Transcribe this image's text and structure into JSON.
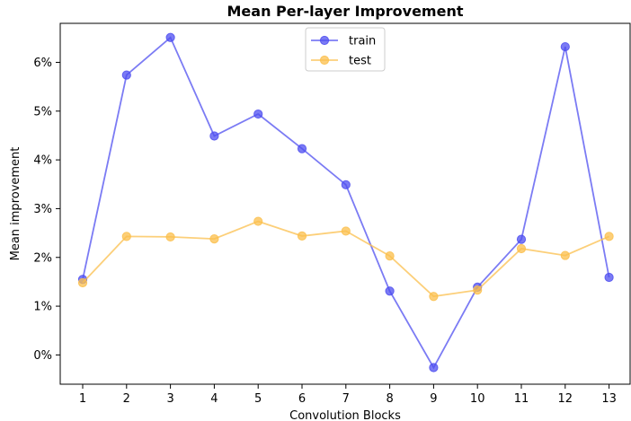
{
  "chart_data": {
    "type": "line",
    "title": "Mean Per-layer Improvement",
    "xlabel": "Convolution Blocks",
    "ylabel": "Mean improvement",
    "categories": [
      1,
      2,
      3,
      4,
      5,
      6,
      7,
      8,
      9,
      10,
      11,
      12,
      13
    ],
    "ylim": [
      -0.6,
      6.8
    ],
    "yticks": [
      0,
      1,
      2,
      3,
      4,
      5,
      6
    ],
    "ytick_labels": [
      "0%",
      "1%",
      "2%",
      "3%",
      "4%",
      "5%",
      "6%"
    ],
    "grid": false,
    "legend_position": "upper-center",
    "series": [
      {
        "name": "train",
        "color": "#4f4ff0",
        "values": [
          1.55,
          5.74,
          6.51,
          4.49,
          4.94,
          4.23,
          3.49,
          1.31,
          -0.26,
          1.39,
          2.37,
          6.32,
          1.59
        ]
      },
      {
        "name": "test",
        "color": "#fbbf4c",
        "values": [
          1.48,
          2.43,
          2.42,
          2.38,
          2.74,
          2.44,
          2.54,
          2.03,
          1.2,
          1.33,
          2.18,
          2.04,
          2.43
        ]
      }
    ]
  }
}
